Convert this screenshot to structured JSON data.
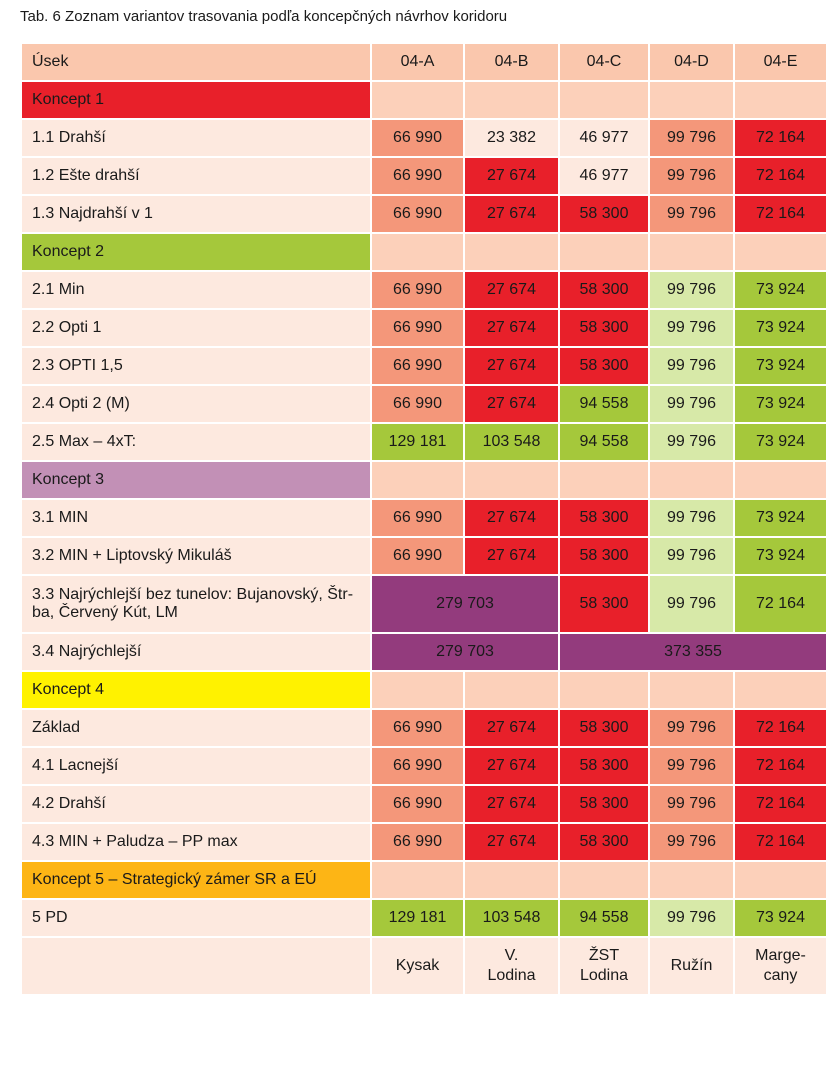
{
  "title": "Tab. 6 Zoznam variantov trasovania podľa koncepčných návrhov koridoru",
  "table": {
    "header": [
      "Úsek",
      "04-A",
      "04-B",
      "04-C",
      "04-D",
      "04-E"
    ],
    "rows": [
      [
        "Koncept 1"
      ],
      [
        "1.1 Drahší",
        "66 990",
        "23 382",
        "46 977",
        "99 796",
        "72 164"
      ],
      [
        "1.2 Ešte drahší",
        "66 990",
        "27 674",
        "46 977",
        "99 796",
        "72 164"
      ],
      [
        "1.3 Najdrahší v 1",
        "66 990",
        "27 674",
        "58 300",
        "99 796",
        "72 164"
      ],
      [
        "Koncept 2"
      ],
      [
        "2.1 Min",
        "66 990",
        "27 674",
        "58 300",
        "99 796",
        "73 924"
      ],
      [
        "2.2 Opti 1",
        "66 990",
        "27 674",
        "58 300",
        "99 796",
        "73 924"
      ],
      [
        "2.3 OPTI 1,5",
        "66 990",
        "27 674",
        "58 300",
        "99 796",
        "73 924"
      ],
      [
        "2.4 Opti 2 (M)",
        "66 990",
        "27 674",
        "94 558",
        "99 796",
        "73 924"
      ],
      [
        "2.5 Max – 4xT:",
        "129 181",
        "103 548",
        "94 558",
        "99 796",
        "73 924"
      ],
      [
        "Koncept 3"
      ],
      [
        "3.1 MIN",
        "66 990",
        "27 674",
        "58 300",
        "99 796",
        "73 924"
      ],
      [
        "3.2 MIN + Liptovský Mikuláš",
        "66 990",
        "27 674",
        "58 300",
        "99 796",
        "73 924"
      ],
      [
        "3.3 Najrýchlejší bez tunelov: Bujanovský, Štr-ba, Červený Kút, LM",
        "279 703",
        "58 300",
        "99 796",
        "72 164"
      ],
      [
        "3.4 Najrýchlejší",
        "279 703",
        "373 355"
      ],
      [
        "Koncept 4"
      ],
      [
        "Základ",
        "66 990",
        "27 674",
        "58 300",
        "99 796",
        "72 164"
      ],
      [
        "4.1 Lacnejší",
        "66 990",
        "27 674",
        "58 300",
        "99 796",
        "72 164"
      ],
      [
        "4.2 Drahší",
        "66 990",
        "27 674",
        "58 300",
        "99 796",
        "72 164"
      ],
      [
        "4.3 MIN + Paludza – PP max",
        "66 990",
        "27 674",
        "58 300",
        "99 796",
        "72 164"
      ],
      [
        "Koncept 5 – Strategický zámer SR a EÚ"
      ],
      [
        "5 PD",
        "129 181",
        "103 548",
        "94 558",
        "99 796",
        "73 924"
      ]
    ],
    "footer": [
      "Kysak",
      "V. Lodina",
      "ŽST Lodina",
      "Ružín",
      "Marge-cany"
    ]
  }
}
